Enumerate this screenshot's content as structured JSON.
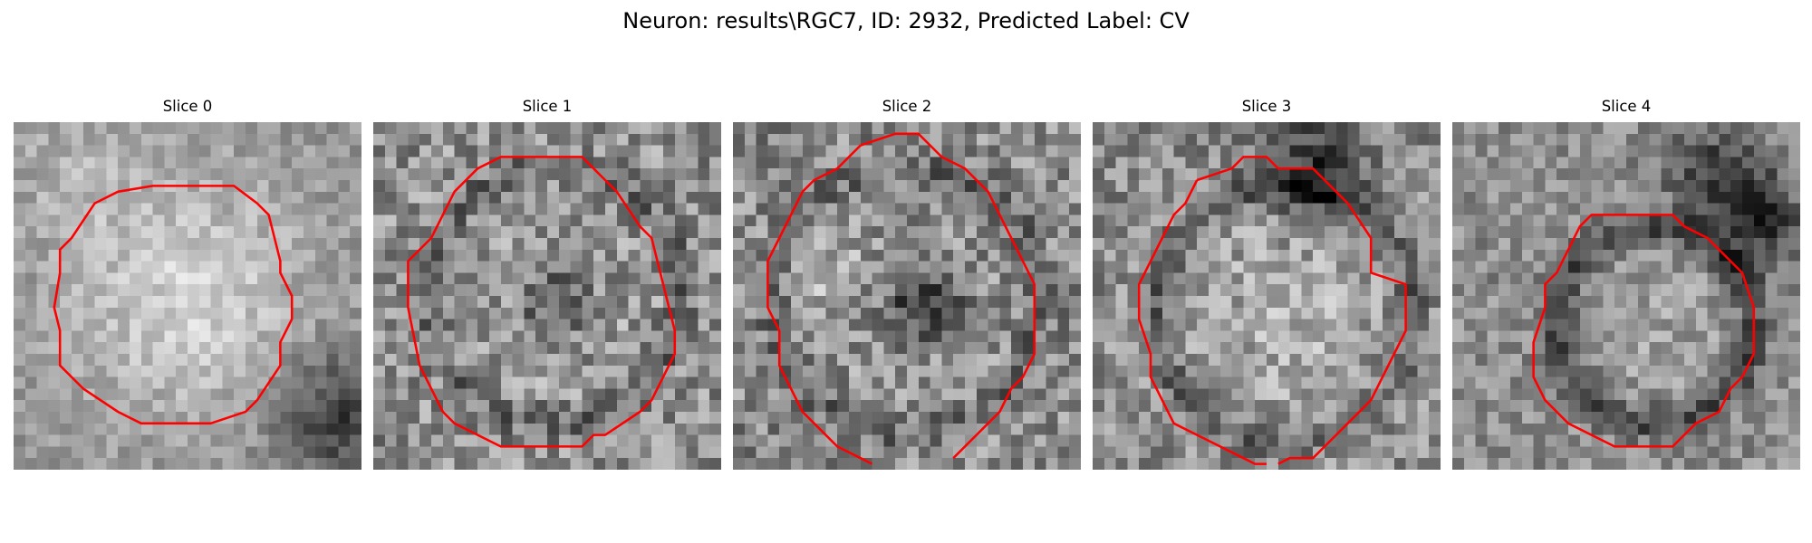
{
  "figure": {
    "title": "Neuron: results\\RGC7, ID: 2932, Predicted Label: CV"
  },
  "contour_color": "#ff0000",
  "slices": [
    {
      "title": "Slice 0",
      "kind": "slice-0"
    },
    {
      "title": "Slice 1",
      "kind": "slice-1"
    },
    {
      "title": "Slice 2",
      "kind": "slice-2"
    },
    {
      "title": "Slice 3",
      "kind": "slice-3"
    },
    {
      "title": "Slice 4",
      "kind": "slice-4"
    }
  ]
}
